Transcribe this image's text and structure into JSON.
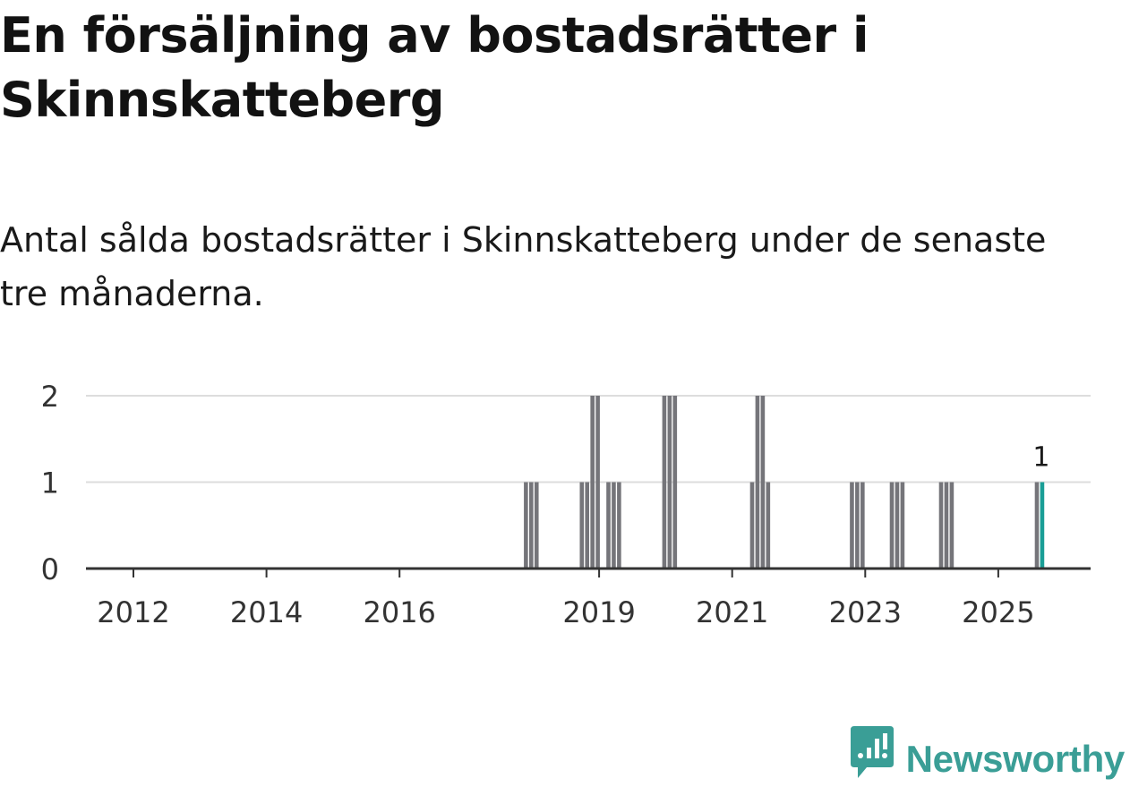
{
  "title": "En försäljning av bostadsrätter i Skinnskatteberg",
  "subtitle": "Antal sålda bostadsrätter i Skinnskatteberg under de senaste tre månaderna.",
  "brand": {
    "name": "Newsworthy",
    "icon": "newsworthy-logo-icon"
  },
  "colors": {
    "bar": "#75757a",
    "highlight": "#1a9e96",
    "axis": "#333333",
    "grid": "#dddddd",
    "text": "#333333"
  },
  "chart_data": {
    "type": "bar",
    "title": "Antal sålda bostadsrätter i Skinnskatteberg under de senaste tre månaderna.",
    "xlabel": "",
    "ylabel": "",
    "ylim": [
      0,
      2
    ],
    "yticks": [
      "0",
      "1",
      "2"
    ],
    "xticks": [
      {
        "label": "2012",
        "year": 2012.0
      },
      {
        "label": "2014",
        "year": 2014.0
      },
      {
        "label": "2016",
        "year": 2016.0
      },
      {
        "label": "2019",
        "year": 2019.0
      },
      {
        "label": "2021",
        "year": 2021.0
      },
      {
        "label": "2023",
        "year": 2023.0
      },
      {
        "label": "2025",
        "year": 2025.0
      }
    ],
    "series": [
      {
        "name": "Antal sålda bostadsrätter",
        "points": [
          {
            "period": "2018-01",
            "x": 2017.9,
            "value": 1
          },
          {
            "period": "2018-02",
            "x": 2017.98,
            "value": 1
          },
          {
            "period": "2018-03",
            "x": 2018.06,
            "value": 1
          },
          {
            "period": "2018-10",
            "x": 2018.74,
            "value": 1
          },
          {
            "period": "2018-11",
            "x": 2018.82,
            "value": 1
          },
          {
            "period": "2018-12",
            "x": 2018.9,
            "value": 2
          },
          {
            "period": "2019-01",
            "x": 2018.98,
            "value": 2
          },
          {
            "period": "2019-04",
            "x": 2019.14,
            "value": 1
          },
          {
            "period": "2019-05",
            "x": 2019.22,
            "value": 1
          },
          {
            "period": "2019-06",
            "x": 2019.3,
            "value": 1
          },
          {
            "period": "2019-12",
            "x": 2019.98,
            "value": 2
          },
          {
            "period": "2020-01",
            "x": 2020.06,
            "value": 2
          },
          {
            "period": "2020-02",
            "x": 2020.14,
            "value": 2
          },
          {
            "period": "2021-02",
            "x": 2021.3,
            "value": 1
          },
          {
            "period": "2021-03",
            "x": 2021.38,
            "value": 2
          },
          {
            "period": "2021-04",
            "x": 2021.46,
            "value": 2
          },
          {
            "period": "2021-05",
            "x": 2021.54,
            "value": 1
          },
          {
            "period": "2022-09",
            "x": 2022.8,
            "value": 1
          },
          {
            "period": "2022-10",
            "x": 2022.88,
            "value": 1
          },
          {
            "period": "2022-11",
            "x": 2022.96,
            "value": 1
          },
          {
            "period": "2023-05",
            "x": 2023.4,
            "value": 1
          },
          {
            "period": "2023-06",
            "x": 2023.48,
            "value": 1
          },
          {
            "period": "2023-07",
            "x": 2023.56,
            "value": 1
          },
          {
            "period": "2024-01",
            "x": 2024.14,
            "value": 1
          },
          {
            "period": "2024-02",
            "x": 2024.22,
            "value": 1
          },
          {
            "period": "2024-03",
            "x": 2024.3,
            "value": 1
          },
          {
            "period": "2025-06",
            "x": 2025.58,
            "value": 1
          },
          {
            "period": "2025-07",
            "x": 2025.66,
            "value": 1,
            "highlight": true,
            "label": "1"
          }
        ]
      }
    ]
  }
}
